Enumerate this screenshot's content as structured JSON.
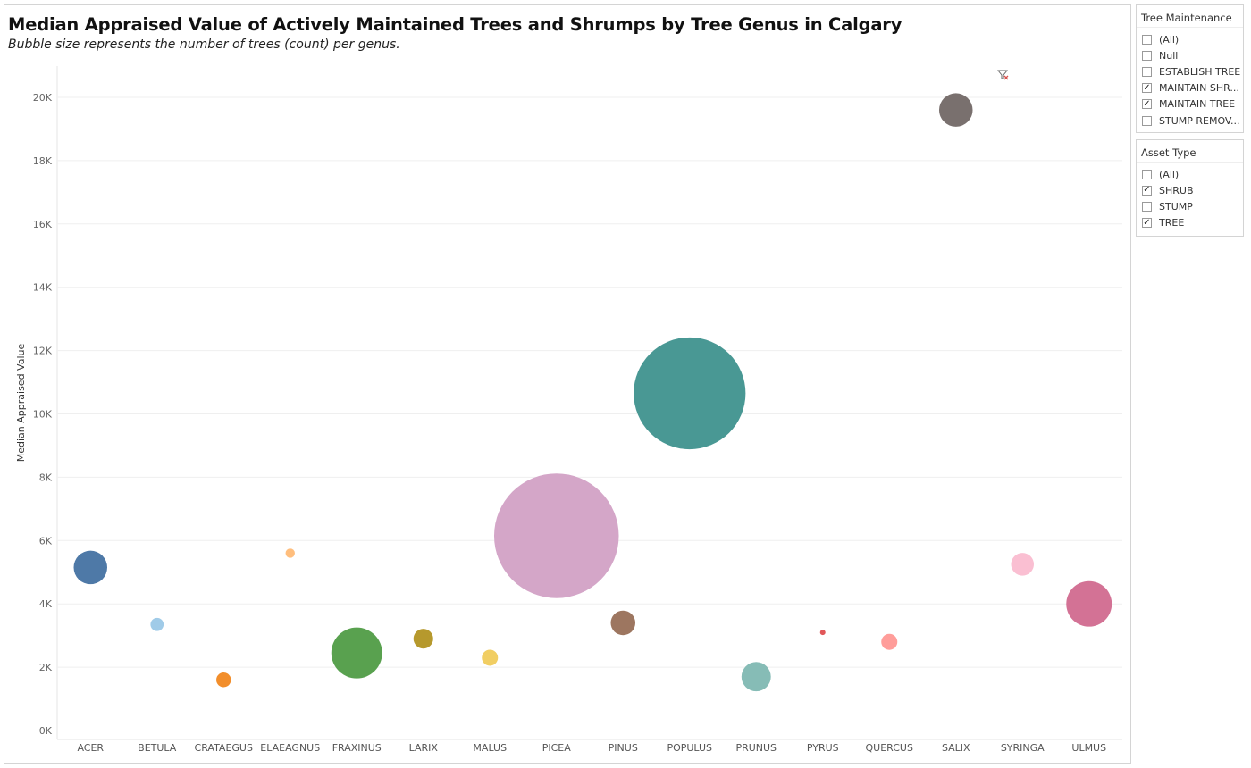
{
  "chart_data": {
    "type": "scatter",
    "title": "Median Appraised Value of Actively Maintained Trees and Shrumps by Tree Genus in Calgary",
    "subtitle": "Bubble size represents the number of trees (count) per genus.",
    "ylabel": "Median Appraised Value",
    "ylim": [
      0,
      20500
    ],
    "y_ticks": [
      {
        "value": 0,
        "label": "0K"
      },
      {
        "value": 2000,
        "label": "2K"
      },
      {
        "value": 4000,
        "label": "4K"
      },
      {
        "value": 6000,
        "label": "6K"
      },
      {
        "value": 8000,
        "label": "8K"
      },
      {
        "value": 10000,
        "label": "10K"
      },
      {
        "value": 12000,
        "label": "12K"
      },
      {
        "value": 14000,
        "label": "14K"
      },
      {
        "value": 16000,
        "label": "16K"
      },
      {
        "value": 18000,
        "label": "18K"
      },
      {
        "value": 20000,
        "label": "20K"
      }
    ],
    "grid": true,
    "size_field": "count",
    "categories": [
      "ACER",
      "BETULA",
      "CRATAEGUS",
      "ELAEAGNUS",
      "FRAXINUS",
      "LARIX",
      "MALUS",
      "PICEA",
      "PINUS",
      "POPULUS",
      "PRUNUS",
      "PYRUS",
      "QUERCUS",
      "SALIX",
      "SYRINGA",
      "ULMUS"
    ],
    "points": [
      {
        "genus": "ACER",
        "value": 5150,
        "count": 13.0,
        "color": "#4e79a7"
      },
      {
        "genus": "BETULA",
        "value": 3350,
        "count": 2.0,
        "color": "#a0cbe8"
      },
      {
        "genus": "CRATAEGUS",
        "value": 1600,
        "count": 2.5,
        "color": "#f28e2b"
      },
      {
        "genus": "ELAEAGNUS",
        "value": 5600,
        "count": 1.0,
        "color": "#ffbe7d"
      },
      {
        "genus": "FRAXINUS",
        "value": 2450,
        "count": 30.0,
        "color": "#59a14f"
      },
      {
        "genus": "LARIX",
        "value": 2900,
        "count": 4.5,
        "color": "#b6992d"
      },
      {
        "genus": "MALUS",
        "value": 2300,
        "count": 3.0,
        "color": "#f1ce63"
      },
      {
        "genus": "PICEA",
        "value": 6150,
        "count": 180.0,
        "color": "#d4a6c8"
      },
      {
        "genus": "PINUS",
        "value": 3400,
        "count": 7.0,
        "color": "#9d7660"
      },
      {
        "genus": "POPULUS",
        "value": 10650,
        "count": 145.0,
        "color": "#499894"
      },
      {
        "genus": "PRUNUS",
        "value": 1700,
        "count": 10.0,
        "color": "#86bcb6"
      },
      {
        "genus": "PYRUS",
        "value": 3100,
        "count": 0.3,
        "color": "#e15759"
      },
      {
        "genus": "QUERCUS",
        "value": 2800,
        "count": 3.0,
        "color": "#ff9d9a"
      },
      {
        "genus": "SALIX",
        "value": 19600,
        "count": 13.0,
        "color": "#79706e"
      },
      {
        "genus": "SYRINGA",
        "value": 5250,
        "count": 6.0,
        "color": "#fabfd2"
      },
      {
        "genus": "ULMUS",
        "value": 4000,
        "count": 24.0,
        "color": "#d37295"
      }
    ]
  },
  "filters": {
    "tree_maintenance": {
      "title": "Tree Maintenance",
      "options": [
        {
          "label": "(All)",
          "checked": false
        },
        {
          "label": "Null",
          "checked": false
        },
        {
          "label": "ESTABLISH TREE",
          "checked": false
        },
        {
          "label": "MAINTAIN SHR...",
          "checked": true
        },
        {
          "label": "MAINTAIN TREE",
          "checked": true
        },
        {
          "label": "STUMP REMOV...",
          "checked": false
        }
      ]
    },
    "asset_type": {
      "title": "Asset Type",
      "options": [
        {
          "label": "(All)",
          "checked": false
        },
        {
          "label": "SHRUB",
          "checked": true
        },
        {
          "label": "STUMP",
          "checked": false
        },
        {
          "label": "TREE",
          "checked": true
        }
      ]
    }
  },
  "icons": {
    "clear_filter": "clear-filter-icon"
  }
}
